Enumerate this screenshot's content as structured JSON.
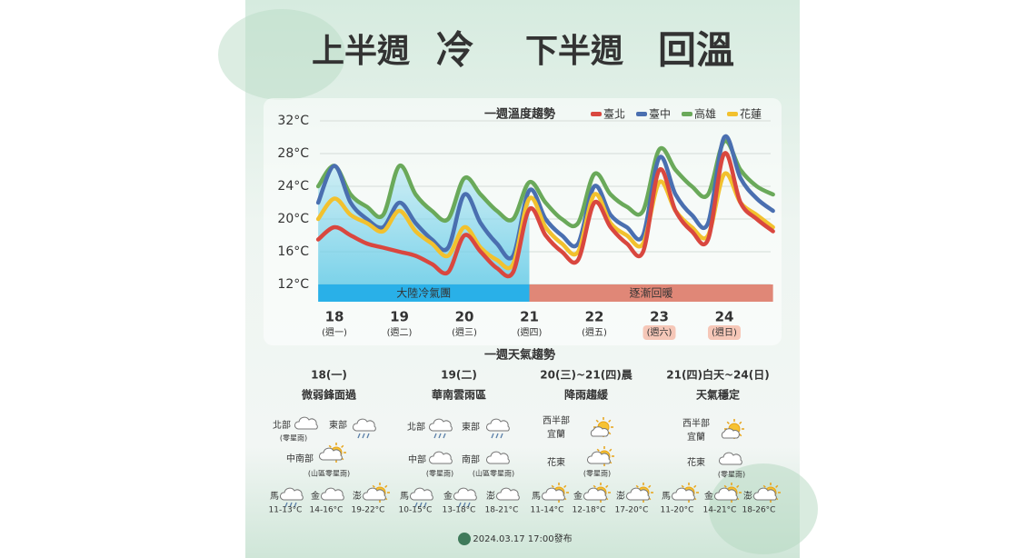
{
  "header": {
    "parts": [
      "上半週",
      "冷",
      "下半週",
      "回溫"
    ]
  },
  "chart_data": {
    "type": "line",
    "title": "一週溫度趨勢",
    "x": [
      17.75,
      18,
      18.25,
      18.5,
      18.75,
      19,
      19.25,
      19.5,
      19.75,
      20,
      20.25,
      20.5,
      20.75,
      21,
      21.25,
      21.5,
      21.75,
      22,
      22.25,
      22.5,
      22.75,
      23,
      23.25,
      23.5,
      23.75,
      24,
      24.25,
      24.5,
      24.75
    ],
    "series": [
      {
        "name": "臺北",
        "color": "#d9473f",
        "values": [
          17.5,
          19,
          18,
          17,
          16.5,
          16,
          15.5,
          14.5,
          13.5,
          18,
          16,
          14,
          13.5,
          21.2,
          18,
          16,
          15,
          22,
          19,
          17,
          16,
          26,
          21,
          18.5,
          17.5,
          28,
          22,
          20,
          18.5
        ]
      },
      {
        "name": "臺中",
        "color": "#4a6fb0",
        "values": [
          22,
          26.5,
          22,
          20,
          19,
          22,
          19.5,
          17.5,
          16.5,
          23,
          19.5,
          17,
          15.5,
          23.5,
          20,
          18,
          17,
          24,
          20.5,
          19,
          18,
          27.5,
          23,
          20.5,
          19.5,
          30,
          25,
          22.5,
          21
        ]
      },
      {
        "name": "高雄",
        "color": "#6aa95a",
        "values": [
          24,
          26.5,
          23,
          21.5,
          20.5,
          26.5,
          23,
          21,
          20,
          25,
          23,
          21,
          20,
          24.5,
          22,
          20,
          19.5,
          25.5,
          23,
          21.5,
          21,
          28.5,
          26,
          24,
          23,
          29.5,
          26,
          24,
          23
        ]
      },
      {
        "name": "花蓮",
        "color": "#f2c12e",
        "values": [
          20,
          22.5,
          20.5,
          19.5,
          18.5,
          21,
          18.5,
          17,
          15.5,
          19,
          16.5,
          15,
          14.5,
          22.5,
          19,
          17,
          16,
          23,
          19.5,
          18,
          17,
          24.5,
          21,
          19,
          18,
          25.5,
          22,
          20.5,
          19
        ]
      }
    ],
    "xlim": [
      17.75,
      24.75
    ],
    "xticks": [
      18,
      19,
      20,
      21,
      22,
      23,
      24
    ],
    "xtick_sublabels": [
      "(週一)",
      "(週二)",
      "(週三)",
      "(週四)",
      "(週五)",
      "(週六)",
      "(週日)"
    ],
    "ylim": [
      12,
      32
    ],
    "yticks": [
      {
        "value": 12,
        "label": "12°C"
      },
      {
        "value": 16,
        "label": "16°C"
      },
      {
        "value": 20,
        "label": "20°C"
      },
      {
        "value": 24,
        "label": "24°C"
      },
      {
        "value": 28,
        "label": "28°C"
      },
      {
        "value": 32,
        "label": "32°C"
      }
    ],
    "grid": true,
    "legend": "top-right",
    "bands": [
      {
        "label": "大陸冷氣團",
        "from": 17.75,
        "to": 21,
        "color": "#29b0e8"
      },
      {
        "label": "逐漸回暖",
        "from": 21,
        "to": 24.75,
        "color": "#e08777"
      }
    ]
  },
  "weather": {
    "title": "一週天氣趨勢",
    "columns": [
      {
        "date": "18(一)",
        "desc": "微弱鋒面過",
        "regions": [
          {
            "names": [
              "北部"
            ],
            "note": "(零星雨)"
          },
          {
            "names": [
              "東部"
            ]
          },
          {
            "names": [
              "中南部"
            ],
            "note": "(山區零星雨)"
          }
        ],
        "islands": [
          {
            "name": "馬",
            "temp": "11-13°C"
          },
          {
            "name": "金",
            "temp": "14-16°C"
          },
          {
            "name": "澎",
            "temp": "19-22°C"
          }
        ]
      },
      {
        "date": "19(二)",
        "desc": "華南雲雨區",
        "regions": [
          {
            "names": [
              "北部"
            ]
          },
          {
            "names": [
              "東部"
            ]
          },
          {
            "names": [
              "中部"
            ],
            "note": "(零星雨)"
          },
          {
            "names": [
              "南部"
            ],
            "note": "(山區零星雨)"
          }
        ],
        "islands": [
          {
            "name": "馬",
            "temp": "10-15°C"
          },
          {
            "name": "金",
            "temp": "13-18°C"
          },
          {
            "name": "澎",
            "temp": "18-21°C"
          }
        ]
      },
      {
        "date": "20(三)~21(四)晨",
        "desc": "降雨趨緩",
        "regions": [
          {
            "names": [
              "西半部",
              "宜蘭"
            ]
          },
          {
            "names": [
              "花東"
            ],
            "note": "(零星雨)"
          }
        ],
        "islands": [
          {
            "name": "馬",
            "temp": "11-14°C"
          },
          {
            "name": "金",
            "temp": "12-18°C"
          },
          {
            "name": "澎",
            "temp": "17-20°C"
          }
        ]
      },
      {
        "date": "21(四)白天~24(日)",
        "desc": "天氣穩定",
        "regions": [
          {
            "names": [
              "西半部",
              "宜蘭"
            ]
          },
          {
            "names": [
              "花東"
            ],
            "note": "(零星雨)"
          }
        ],
        "islands": [
          {
            "name": "馬",
            "temp": "11-20°C"
          },
          {
            "name": "金",
            "temp": "14-21°C"
          },
          {
            "name": "澎",
            "temp": "18-26°C"
          }
        ]
      }
    ]
  },
  "footer": {
    "issued": "2024.03.17 17:00發布"
  }
}
